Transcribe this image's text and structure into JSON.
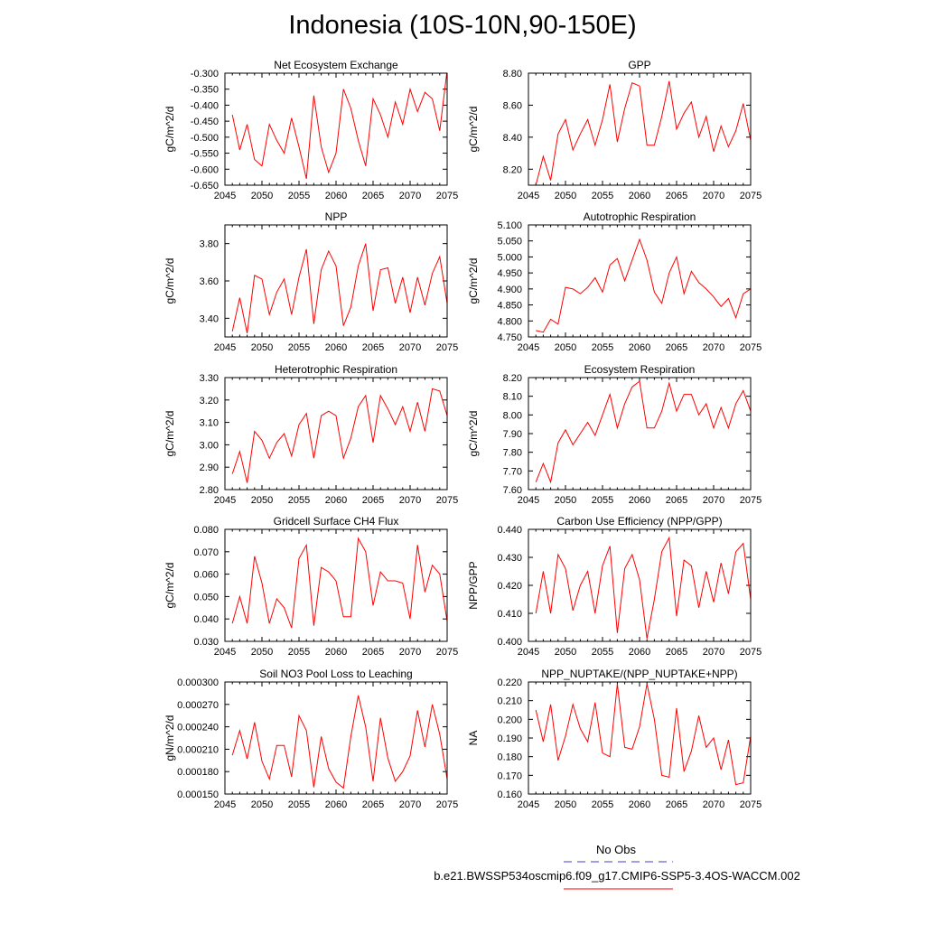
{
  "title": "Indonesia (10S-10N,90-150E)",
  "legend": {
    "no_obs_label": "No Obs",
    "no_obs_color": "#4040c0",
    "model_label": "b.e21.BWSSP534oscmip6.f09_g17.CMIP6-SSP5-3.4OS-WACCM.002",
    "model_color": "#ff0000"
  },
  "chart_data": [
    {
      "type": "line",
      "title": "Net Ecosystem Exchange",
      "ylabel": "gC/m^2/d",
      "xlabel": "",
      "xlim": [
        2045,
        2075
      ],
      "ylim": [
        -0.65,
        -0.3
      ],
      "xticks": [
        2045,
        2050,
        2055,
        2060,
        2065,
        2070,
        2075
      ],
      "yticks": [
        "-0.300",
        "-0.350",
        "-0.400",
        "-0.450",
        "-0.500",
        "-0.550",
        "-0.600",
        "-0.650"
      ],
      "series": [
        {
          "name": "b.e21.BWSSP534oscmip6.f09_g17.CMIP6-SSP5-3.4OS-WACCM.002",
          "x": [
            2046,
            2047,
            2048,
            2049,
            2050,
            2051,
            2052,
            2053,
            2054,
            2055,
            2056,
            2057,
            2058,
            2059,
            2060,
            2061,
            2062,
            2063,
            2064,
            2065,
            2066,
            2067,
            2068,
            2069,
            2070,
            2071,
            2072,
            2073,
            2074,
            2075
          ],
          "values": [
            -0.43,
            -0.54,
            -0.46,
            -0.57,
            -0.59,
            -0.46,
            -0.51,
            -0.55,
            -0.44,
            -0.53,
            -0.63,
            -0.37,
            -0.53,
            -0.61,
            -0.55,
            -0.35,
            -0.41,
            -0.51,
            -0.59,
            -0.38,
            -0.43,
            -0.5,
            -0.39,
            -0.46,
            -0.35,
            -0.42,
            -0.36,
            -0.38,
            -0.48,
            -0.29
          ]
        }
      ]
    },
    {
      "type": "line",
      "title": "GPP",
      "ylabel": "gC/m^2/d",
      "xlabel": "",
      "xlim": [
        2045,
        2075
      ],
      "ylim": [
        8.1,
        8.8
      ],
      "xticks": [
        2045,
        2050,
        2055,
        2060,
        2065,
        2070,
        2075
      ],
      "yticks": [
        "8.20",
        "8.40",
        "8.60",
        "8.80"
      ],
      "series": [
        {
          "name": "b.e21.BWSSP534oscmip6.f09_g17.CMIP6-SSP5-3.4OS-WACCM.002",
          "x": [
            2046,
            2047,
            2048,
            2049,
            2050,
            2051,
            2052,
            2053,
            2054,
            2055,
            2056,
            2057,
            2058,
            2059,
            2060,
            2061,
            2062,
            2063,
            2064,
            2065,
            2066,
            2067,
            2068,
            2069,
            2070,
            2071,
            2072,
            2073,
            2074,
            2075
          ],
          "values": [
            8.1,
            8.28,
            8.13,
            8.42,
            8.51,
            8.32,
            8.42,
            8.51,
            8.35,
            8.51,
            8.73,
            8.37,
            8.58,
            8.74,
            8.72,
            8.35,
            8.35,
            8.53,
            8.75,
            8.45,
            8.55,
            8.62,
            8.4,
            8.53,
            8.31,
            8.47,
            8.34,
            8.44,
            8.61,
            8.38
          ]
        }
      ]
    },
    {
      "type": "line",
      "title": "NPP",
      "ylabel": "gC/m^2/d",
      "xlabel": "",
      "xlim": [
        2045,
        2075
      ],
      "ylim": [
        3.3,
        3.9
      ],
      "xticks": [
        2045,
        2050,
        2055,
        2060,
        2065,
        2070,
        2075
      ],
      "yticks": [
        "3.40",
        "3.60",
        "3.80"
      ],
      "series": [
        {
          "name": "b.e21.BWSSP534oscmip6.f09_g17.CMIP6-SSP5-3.4OS-WACCM.002",
          "x": [
            2046,
            2047,
            2048,
            2049,
            2050,
            2051,
            2052,
            2053,
            2054,
            2055,
            2056,
            2057,
            2058,
            2059,
            2060,
            2061,
            2062,
            2063,
            2064,
            2065,
            2066,
            2067,
            2068,
            2069,
            2070,
            2071,
            2072,
            2073,
            2074,
            2075
          ],
          "values": [
            3.33,
            3.51,
            3.32,
            3.63,
            3.61,
            3.42,
            3.54,
            3.61,
            3.42,
            3.62,
            3.77,
            3.37,
            3.66,
            3.76,
            3.68,
            3.36,
            3.46,
            3.68,
            3.8,
            3.44,
            3.66,
            3.67,
            3.48,
            3.62,
            3.43,
            3.62,
            3.47,
            3.64,
            3.73,
            3.48
          ]
        }
      ]
    },
    {
      "type": "line",
      "title": "Autotrophic Respiration",
      "ylabel": "gC/m^2/d",
      "xlabel": "",
      "xlim": [
        2045,
        2075
      ],
      "ylim": [
        4.75,
        5.1
      ],
      "xticks": [
        2045,
        2050,
        2055,
        2060,
        2065,
        2070,
        2075
      ],
      "yticks": [
        "4.750",
        "4.800",
        "4.850",
        "4.900",
        "4.950",
        "5.000",
        "5.050",
        "5.100"
      ],
      "series": [
        {
          "name": "b.e21.BWSSP534oscmip6.f09_g17.CMIP6-SSP5-3.4OS-WACCM.002",
          "x": [
            2046,
            2047,
            2048,
            2049,
            2050,
            2051,
            2052,
            2053,
            2054,
            2055,
            2056,
            2057,
            2058,
            2059,
            2060,
            2061,
            2062,
            2063,
            2064,
            2065,
            2066,
            2067,
            2068,
            2069,
            2070,
            2071,
            2072,
            2073,
            2074,
            2075
          ],
          "values": [
            4.77,
            4.765,
            4.805,
            4.79,
            4.905,
            4.9,
            4.885,
            4.905,
            4.935,
            4.89,
            4.975,
            4.995,
            4.925,
            4.99,
            5.055,
            4.99,
            4.89,
            4.855,
            4.95,
            5.0,
            4.885,
            4.955,
            4.92,
            4.9,
            4.875,
            4.845,
            4.87,
            4.81,
            4.885,
            4.9
          ]
        }
      ]
    },
    {
      "type": "line",
      "title": "Heterotrophic Respiration",
      "ylabel": "gC/m^2/d",
      "xlabel": "",
      "xlim": [
        2045,
        2075
      ],
      "ylim": [
        2.8,
        3.3
      ],
      "xticks": [
        2045,
        2050,
        2055,
        2060,
        2065,
        2070,
        2075
      ],
      "yticks": [
        "2.80",
        "2.90",
        "3.00",
        "3.10",
        "3.20",
        "3.30"
      ],
      "series": [
        {
          "name": "b.e21.BWSSP534oscmip6.f09_g17.CMIP6-SSP5-3.4OS-WACCM.002",
          "x": [
            2046,
            2047,
            2048,
            2049,
            2050,
            2051,
            2052,
            2053,
            2054,
            2055,
            2056,
            2057,
            2058,
            2059,
            2060,
            2061,
            2062,
            2063,
            2064,
            2065,
            2066,
            2067,
            2068,
            2069,
            2070,
            2071,
            2072,
            2073,
            2074,
            2075
          ],
          "values": [
            2.87,
            2.97,
            2.83,
            3.06,
            3.02,
            2.94,
            3.01,
            3.05,
            2.95,
            3.09,
            3.14,
            2.94,
            3.13,
            3.15,
            3.13,
            2.94,
            3.03,
            3.17,
            3.22,
            3.01,
            3.22,
            3.16,
            3.09,
            3.17,
            3.06,
            3.19,
            3.06,
            3.25,
            3.24,
            3.13
          ]
        }
      ]
    },
    {
      "type": "line",
      "title": "Ecosystem Respiration",
      "ylabel": "gC/m^2/d",
      "xlabel": "",
      "xlim": [
        2045,
        2075
      ],
      "ylim": [
        7.6,
        8.2
      ],
      "xticks": [
        2045,
        2050,
        2055,
        2060,
        2065,
        2070,
        2075
      ],
      "yticks": [
        "7.60",
        "7.70",
        "7.80",
        "7.90",
        "8.00",
        "8.10",
        "8.20"
      ],
      "series": [
        {
          "name": "b.e21.BWSSP534oscmip6.f09_g17.CMIP6-SSP5-3.4OS-WACCM.002",
          "x": [
            2046,
            2047,
            2048,
            2049,
            2050,
            2051,
            2052,
            2053,
            2054,
            2055,
            2056,
            2057,
            2058,
            2059,
            2060,
            2061,
            2062,
            2063,
            2064,
            2065,
            2066,
            2067,
            2068,
            2069,
            2070,
            2071,
            2072,
            2073,
            2074,
            2075
          ],
          "values": [
            7.64,
            7.74,
            7.64,
            7.85,
            7.92,
            7.84,
            7.9,
            7.96,
            7.89,
            8.0,
            8.11,
            7.93,
            8.06,
            8.15,
            8.18,
            7.93,
            7.93,
            8.02,
            8.17,
            8.02,
            8.11,
            8.11,
            8.0,
            8.06,
            7.93,
            8.04,
            7.93,
            8.06,
            8.13,
            8.02
          ]
        }
      ]
    },
    {
      "type": "line",
      "title": "Gridcell Surface CH4 Flux",
      "ylabel": "gC/m^2/d",
      "xlabel": "",
      "xlim": [
        2045,
        2075
      ],
      "ylim": [
        0.03,
        0.08
      ],
      "xticks": [
        2045,
        2050,
        2055,
        2060,
        2065,
        2070,
        2075
      ],
      "yticks": [
        "0.030",
        "0.040",
        "0.050",
        "0.060",
        "0.070",
        "0.080"
      ],
      "series": [
        {
          "name": "b.e21.BWSSP534oscmip6.f09_g17.CMIP6-SSP5-3.4OS-WACCM.002",
          "x": [
            2046,
            2047,
            2048,
            2049,
            2050,
            2051,
            2052,
            2053,
            2054,
            2055,
            2056,
            2057,
            2058,
            2059,
            2060,
            2061,
            2062,
            2063,
            2064,
            2065,
            2066,
            2067,
            2068,
            2069,
            2070,
            2071,
            2072,
            2073,
            2074,
            2075
          ],
          "values": [
            0.038,
            0.05,
            0.038,
            0.068,
            0.056,
            0.038,
            0.049,
            0.045,
            0.036,
            0.067,
            0.073,
            0.037,
            0.063,
            0.061,
            0.057,
            0.041,
            0.041,
            0.076,
            0.07,
            0.046,
            0.061,
            0.057,
            0.057,
            0.056,
            0.04,
            0.073,
            0.052,
            0.064,
            0.06,
            0.039
          ]
        }
      ]
    },
    {
      "type": "line",
      "title": "Carbon Use Efficiency (NPP/GPP)",
      "ylabel": "NPP/GPP",
      "xlabel": "",
      "xlim": [
        2045,
        2075
      ],
      "ylim": [
        0.4,
        0.44
      ],
      "xticks": [
        2045,
        2050,
        2055,
        2060,
        2065,
        2070,
        2075
      ],
      "yticks": [
        "0.400",
        "0.410",
        "0.420",
        "0.430",
        "0.440"
      ],
      "series": [
        {
          "name": "b.e21.BWSSP534oscmip6.f09_g17.CMIP6-SSP5-3.4OS-WACCM.002",
          "x": [
            2046,
            2047,
            2048,
            2049,
            2050,
            2051,
            2052,
            2053,
            2054,
            2055,
            2056,
            2057,
            2058,
            2059,
            2060,
            2061,
            2062,
            2063,
            2064,
            2065,
            2066,
            2067,
            2068,
            2069,
            2070,
            2071,
            2072,
            2073,
            2074,
            2075
          ],
          "values": [
            0.41,
            0.425,
            0.41,
            0.431,
            0.426,
            0.411,
            0.42,
            0.425,
            0.41,
            0.427,
            0.434,
            0.403,
            0.426,
            0.431,
            0.422,
            0.401,
            0.415,
            0.432,
            0.437,
            0.409,
            0.429,
            0.427,
            0.412,
            0.425,
            0.414,
            0.428,
            0.417,
            0.432,
            0.435,
            0.415
          ]
        }
      ]
    },
    {
      "type": "line",
      "title": "Soil NO3 Pool Loss to Leaching",
      "ylabel": "gN/m^2/d",
      "xlabel": "",
      "xlim": [
        2045,
        2075
      ],
      "ylim": [
        0.00015,
        0.0003
      ],
      "xticks": [
        2045,
        2050,
        2055,
        2060,
        2065,
        2070,
        2075
      ],
      "yticks": [
        "0.000150",
        "0.000180",
        "0.000210",
        "0.000240",
        "0.000270",
        "0.000300"
      ],
      "series": [
        {
          "name": "b.e21.BWSSP534oscmip6.f09_g17.CMIP6-SSP5-3.4OS-WACCM.002",
          "x": [
            2046,
            2047,
            2048,
            2049,
            2050,
            2051,
            2052,
            2053,
            2054,
            2055,
            2056,
            2057,
            2058,
            2059,
            2060,
            2061,
            2062,
            2063,
            2064,
            2065,
            2066,
            2067,
            2068,
            2069,
            2070,
            2071,
            2072,
            2073,
            2074,
            2075
          ],
          "values": [
            0.000202,
            0.000235,
            0.000197,
            0.000246,
            0.000194,
            0.00017,
            0.000215,
            0.000215,
            0.000173,
            0.000255,
            0.000235,
            0.000159,
            0.000227,
            0.000184,
            0.000166,
            0.000158,
            0.000227,
            0.000282,
            0.00024,
            0.000167,
            0.000252,
            0.000198,
            0.000167,
            0.00018,
            0.000201,
            0.000262,
            0.000213,
            0.00027,
            0.00023,
            0.00017
          ]
        }
      ]
    },
    {
      "type": "line",
      "title": "NPP_NUPTAKE/(NPP_NUPTAKE+NPP)",
      "ylabel": "NA",
      "xlabel": "",
      "xlim": [
        2045,
        2075
      ],
      "ylim": [
        0.16,
        0.22
      ],
      "xticks": [
        2045,
        2050,
        2055,
        2060,
        2065,
        2070,
        2075
      ],
      "yticks": [
        "0.160",
        "0.170",
        "0.180",
        "0.190",
        "0.200",
        "0.210",
        "0.220"
      ],
      "series": [
        {
          "name": "b.e21.BWSSP534oscmip6.f09_g17.CMIP6-SSP5-3.4OS-WACCM.002",
          "x": [
            2046,
            2047,
            2048,
            2049,
            2050,
            2051,
            2052,
            2053,
            2054,
            2055,
            2056,
            2057,
            2058,
            2059,
            2060,
            2061,
            2062,
            2063,
            2064,
            2065,
            2066,
            2067,
            2068,
            2069,
            2070,
            2071,
            2072,
            2073,
            2074,
            2075
          ],
          "values": [
            0.205,
            0.188,
            0.208,
            0.178,
            0.191,
            0.208,
            0.195,
            0.188,
            0.209,
            0.182,
            0.18,
            0.219,
            0.185,
            0.184,
            0.196,
            0.219,
            0.2,
            0.17,
            0.169,
            0.206,
            0.172,
            0.183,
            0.202,
            0.185,
            0.19,
            0.173,
            0.189,
            0.165,
            0.166,
            0.191
          ]
        }
      ]
    }
  ]
}
